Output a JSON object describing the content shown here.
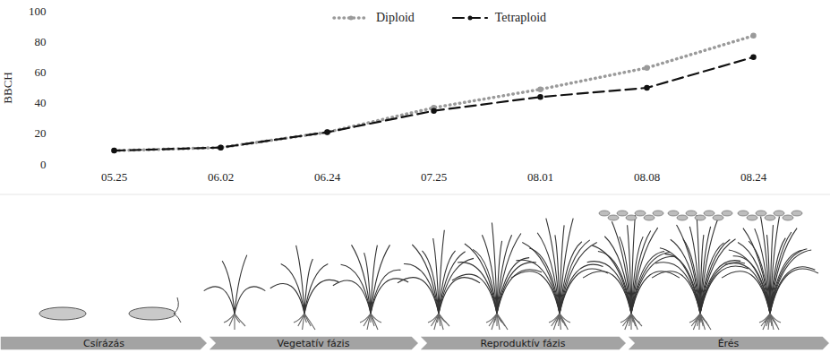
{
  "chart_data": {
    "type": "line",
    "y_label": "BBCH",
    "categories": [
      "05.25",
      "06.02",
      "06.24",
      "07.25",
      "08.01",
      "08.08",
      "08.24"
    ],
    "series": [
      {
        "name": "Diploid",
        "color": "#9a9a9a",
        "line_style": "dotted",
        "marker": "circle",
        "values": [
          9,
          11,
          21,
          37,
          49,
          63,
          84
        ]
      },
      {
        "name": "Tetraploid",
        "color": "#111111",
        "line_style": "dashed",
        "marker": "circle",
        "values": [
          9,
          11,
          21,
          35,
          44,
          50,
          70
        ]
      }
    ],
    "ylim": [
      0,
      100
    ],
    "yticks": [
      0,
      20,
      40,
      60,
      80,
      100
    ],
    "grid": false,
    "legend": "top"
  },
  "phase_bar": {
    "labels": [
      "Csírázás",
      "Vegetatív fázis",
      "Reproduktív fázis",
      "Érés"
    ]
  }
}
